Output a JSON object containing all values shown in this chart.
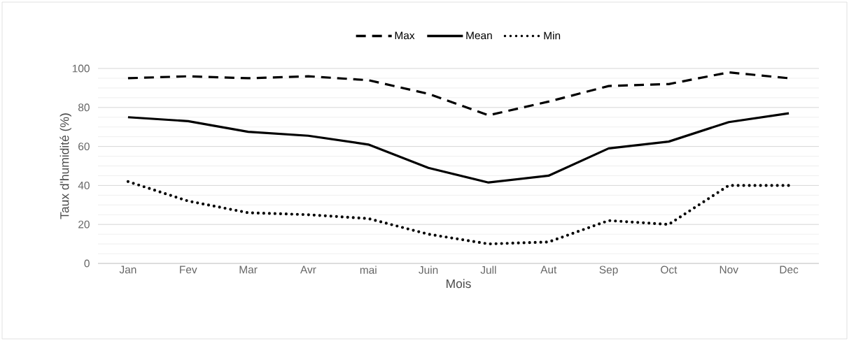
{
  "chart_data": {
    "type": "line",
    "xlabel": "Mois",
    "ylabel": "Taux d'humidité (%)",
    "categories": [
      "Jan",
      "Fev",
      "Mar",
      "Avr",
      "mai",
      "Juin",
      "Jull",
      "Aut",
      "Sep",
      "Oct",
      "Nov",
      "Dec"
    ],
    "series": [
      {
        "name": "Max",
        "color": "#000000",
        "line_style": "dashed",
        "values": [
          95,
          96,
          95,
          96,
          94,
          87,
          76,
          83,
          91,
          92,
          98,
          95
        ]
      },
      {
        "name": "Mean",
        "color": "#000000",
        "line_style": "solid",
        "values": [
          75,
          73,
          67.5,
          65.5,
          61,
          49,
          41.5,
          45,
          59,
          62.5,
          72.5,
          77
        ]
      },
      {
        "name": "Min",
        "color": "#000000",
        "line_style": "dotted",
        "values": [
          42,
          32,
          26,
          25,
          23,
          15,
          10,
          11,
          22,
          20,
          40,
          40
        ]
      }
    ],
    "ylim": [
      0,
      100
    ],
    "yticks": [
      0,
      20,
      40,
      60,
      80,
      100
    ],
    "grid": "y",
    "legend": "top",
    "marker": "none"
  }
}
